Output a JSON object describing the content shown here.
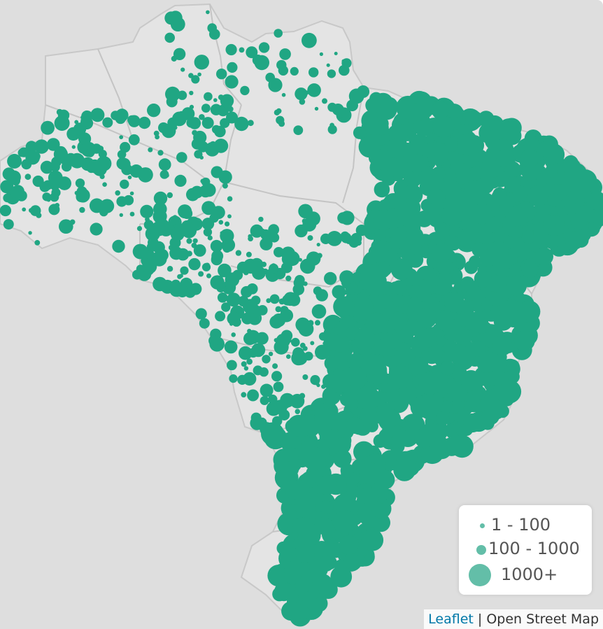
{
  "map": {
    "country": "Brazil",
    "marker_color": "#20a683",
    "land_color": "#e4e4e4",
    "background_color": "#dedede",
    "border_color": "#c4c4c4"
  },
  "legend": {
    "items": [
      {
        "label": "1 - 100",
        "size": "small"
      },
      {
        "label": "100 - 1000",
        "size": "medium"
      },
      {
        "label": "1000+",
        "size": "large"
      }
    ],
    "symbol_color": "#63bea8"
  },
  "attribution": {
    "leaflet_link": "Leaflet",
    "separator": "|",
    "provider": "Open Street Map"
  }
}
